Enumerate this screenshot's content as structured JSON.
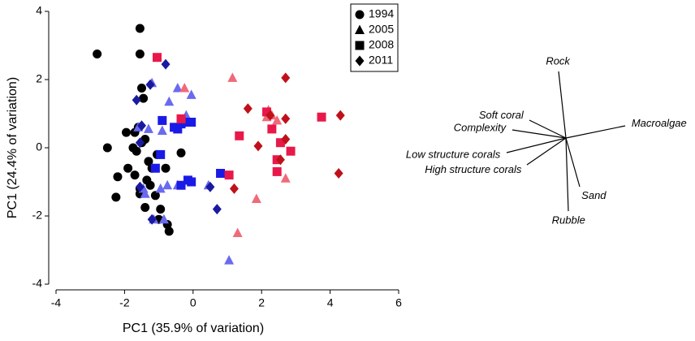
{
  "chart_data": {
    "type": "scatter",
    "xlabel": "PC1 (35.9% of variation)",
    "ylabel": "PC1 (24.4% of variation)",
    "xlim": [
      -4,
      6
    ],
    "ylim": [
      -4,
      4
    ],
    "xticks": [
      -4,
      -2,
      0,
      2,
      4,
      6
    ],
    "yticks": [
      -4,
      -2,
      0,
      2,
      4
    ],
    "legend": "upper right",
    "series": [
      {
        "name": "1994",
        "marker": "circle",
        "color": "#000000",
        "groups": [
          {
            "color": "#000000",
            "x": [
              -2.8,
              -1.55,
              -1.55,
              -1.5,
              -1.45,
              -1.6,
              -1.95,
              -1.7,
              -1.4,
              -2.5,
              -1.75,
              -2.2,
              -1.9,
              -1.3,
              -1.05,
              -0.35,
              -1.65,
              -1.2,
              -0.8,
              -1.7,
              -1.35,
              -1.25,
              -1.55,
              -2.25,
              -1.55,
              -1.1,
              -0.95,
              -1.4,
              -1.0,
              -0.75,
              -0.7,
              -1.5
            ],
            "y": [
              2.75,
              3.5,
              2.75,
              1.75,
              1.45,
              0.6,
              0.45,
              0.45,
              0.25,
              0,
              0,
              -0.85,
              -0.6,
              -0.4,
              -0.2,
              -0.15,
              -0.1,
              -0.6,
              -0.6,
              -0.8,
              -0.95,
              -1.1,
              -1.2,
              -1.45,
              -1.35,
              -1.4,
              -1.8,
              -1.75,
              -2.1,
              -2.25,
              -2.45,
              0.15
            ]
          }
        ]
      },
      {
        "name": "2005",
        "marker": "triangle",
        "color": "#000000",
        "groups": [
          {
            "color": "#6a6af0",
            "x": [
              -1.2,
              -0.7,
              -0.45,
              -0.05,
              -0.2,
              -1.6,
              -1.3,
              -0.9,
              -1.45,
              -0.75,
              -0.95,
              -1.4,
              -1.15,
              -0.85,
              -0.45,
              0.45,
              1.05
            ],
            "y": [
              1.9,
              1.35,
              1.75,
              1.55,
              0.95,
              0.6,
              0.55,
              0.5,
              -1.2,
              -1.1,
              -1.2,
              -1.35,
              -2.1,
              -2.1,
              -1.1,
              -1.1,
              -3.3
            ]
          },
          {
            "color": "#f06a7a",
            "x": [
              -0.25,
              1.15,
              2.2,
              2.3,
              2.15,
              2.45,
              1.85,
              2.7,
              1.3
            ],
            "y": [
              1.75,
              2.05,
              1.1,
              0.95,
              0.9,
              0.8,
              -1.5,
              -0.9,
              -2.5
            ]
          }
        ]
      },
      {
        "name": "2008",
        "marker": "square",
        "color": "#000000",
        "groups": [
          {
            "color": "#1a1ae6",
            "x": [
              -0.9,
              -0.55,
              -0.35,
              -0.2,
              -0.05,
              -0.45,
              -0.95,
              -1.1,
              -0.35,
              -0.15,
              -0.05,
              0.8
            ],
            "y": [
              0.8,
              0.6,
              0.7,
              0.75,
              0.75,
              0.55,
              -0.2,
              -0.6,
              -1.1,
              -0.95,
              -1.0,
              -0.75
            ]
          },
          {
            "color": "#e8194a",
            "x": [
              -1.05,
              -0.35,
              1.35,
              2.15,
              2.3,
              2.55,
              2.45,
              2.45,
              2.85,
              1.05,
              3.75
            ],
            "y": [
              2.65,
              0.85,
              0.35,
              1.05,
              0.55,
              0.15,
              -0.35,
              -0.7,
              -0.1,
              -0.8,
              0.9
            ]
          }
        ]
      },
      {
        "name": "2011",
        "marker": "diamond",
        "color": "#000000",
        "groups": [
          {
            "color": "#1a1aa0",
            "x": [
              -0.8,
              -1.25,
              -1.65,
              -1.5,
              -1.55,
              -1.55,
              -1.2,
              0.5,
              0.7
            ],
            "y": [
              2.45,
              1.85,
              1.4,
              0.65,
              0.15,
              -1.15,
              -2.1,
              -1.15,
              -1.8
            ]
          },
          {
            "color": "#c0101a",
            "x": [
              2.7,
              1.6,
              2.25,
              2.7,
              2.7,
              1.9,
              2.55,
              1.2,
              4.3,
              4.25
            ],
            "y": [
              2.05,
              1.15,
              0.95,
              0.85,
              0.25,
              0.05,
              -0.35,
              -1.2,
              0.95,
              -0.75
            ]
          }
        ]
      }
    ],
    "vectors": [
      {
        "label": "Rock",
        "x": -0.09,
        "y": 0.82
      },
      {
        "label": "Soft coral",
        "x": -0.45,
        "y": 0.22
      },
      {
        "label": "Complexity",
        "x": -0.66,
        "y": 0.1
      },
      {
        "label": "Low structure corals",
        "x": -0.73,
        "y": -0.18
      },
      {
        "label": "High structure corals",
        "x": -0.48,
        "y": -0.33
      },
      {
        "label": "Macroalgae",
        "x": 0.73,
        "y": 0.15
      },
      {
        "label": "Sand",
        "x": 0.17,
        "y": -0.6
      },
      {
        "label": "Rubble",
        "x": 0.03,
        "y": -0.9
      }
    ]
  }
}
